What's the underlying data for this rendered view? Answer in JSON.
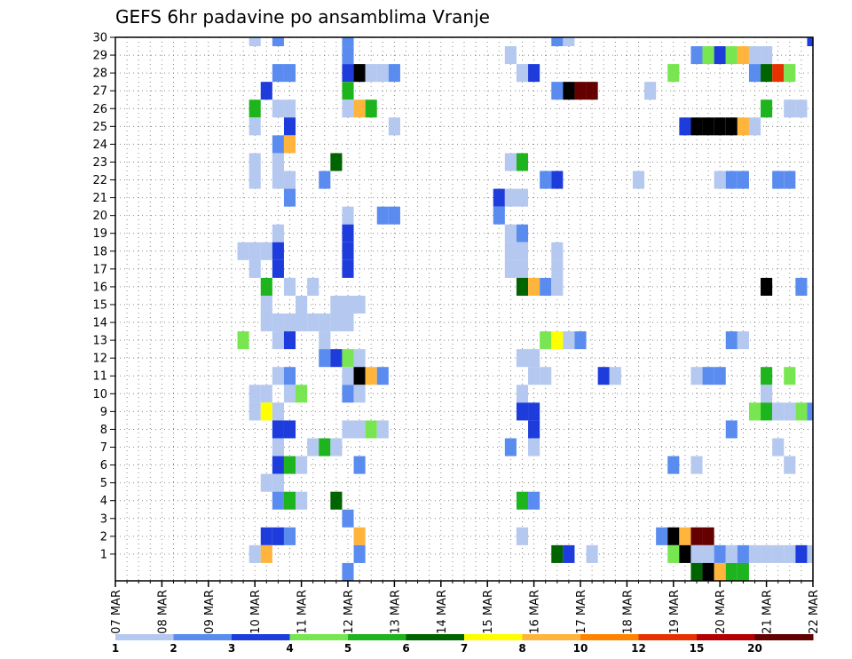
{
  "chart_data": {
    "type": "heatmap",
    "title": "GEFS 6hr padavine po ansamblima Vranje",
    "xlabel": "",
    "ylabel": "",
    "x_ticks": [
      "07 MAR",
      "08 MAR",
      "09 MAR",
      "10 MAR",
      "11 MAR",
      "12 MAR",
      "13 MAR",
      "14 MAR",
      "15 MAR",
      "16 MAR",
      "17 MAR",
      "18 MAR",
      "19 MAR",
      "20 MAR",
      "21 MAR",
      "22 MAR"
    ],
    "y_ticks": [
      "1",
      "2",
      "3",
      "4",
      "5",
      "6",
      "7",
      "8",
      "9",
      "10",
      "11",
      "12",
      "13",
      "14",
      "15",
      "16",
      "17",
      "18",
      "19",
      "20",
      "21",
      "22",
      "23",
      "24",
      "25",
      "26",
      "27",
      "28",
      "29",
      "30"
    ],
    "x_range_days": [
      7,
      22
    ],
    "y_range_members": [
      0,
      30
    ],
    "grid": "dotted",
    "colorbar": {
      "position": "bottom",
      "labels": [
        "1",
        "2",
        "3",
        "4",
        "5",
        "6",
        "7",
        "8",
        "10",
        "12",
        "15",
        "20"
      ],
      "colors": [
        "#b4c8f0",
        "#5a8cf0",
        "#1e3cdc",
        "#78e650",
        "#1eb41e",
        "#006400",
        "#ffff00",
        "#ffb43c",
        "#ff8200",
        "#e63200",
        "#b40000",
        "#640000"
      ]
    },
    "cells": [
      [
        30,
        10.0,
        1
      ],
      [
        30,
        10.5,
        2
      ],
      [
        30,
        12.0,
        2
      ],
      [
        30,
        16.5,
        2
      ],
      [
        30,
        16.75,
        1
      ],
      [
        30,
        22.0,
        3
      ],
      [
        29,
        12.0,
        2
      ],
      [
        29,
        15.5,
        1
      ],
      [
        29,
        19.5,
        2
      ],
      [
        29,
        19.75,
        4
      ],
      [
        29,
        20.0,
        3
      ],
      [
        29,
        20.25,
        4
      ],
      [
        29,
        20.5,
        8
      ],
      [
        29,
        20.75,
        1
      ],
      [
        29,
        21.0,
        1
      ],
      [
        28,
        10.5,
        2
      ],
      [
        28,
        10.75,
        2
      ],
      [
        28,
        12.0,
        3
      ],
      [
        28,
        12.25,
        15
      ],
      [
        28,
        12.5,
        1
      ],
      [
        28,
        12.75,
        1
      ],
      [
        28,
        13.0,
        2
      ],
      [
        28,
        15.75,
        1
      ],
      [
        28,
        16.0,
        3
      ],
      [
        28,
        19.0,
        4
      ],
      [
        28,
        20.75,
        2
      ],
      [
        28,
        21.0,
        6
      ],
      [
        28,
        21.25,
        10
      ],
      [
        28,
        21.5,
        4
      ],
      [
        27,
        10.25,
        3
      ],
      [
        27,
        12.0,
        5
      ],
      [
        27,
        16.5,
        2
      ],
      [
        27,
        16.75,
        20
      ],
      [
        27,
        17.0,
        12
      ],
      [
        27,
        17.25,
        12
      ],
      [
        27,
        18.5,
        1
      ],
      [
        26,
        10.0,
        5
      ],
      [
        26,
        10.5,
        1
      ],
      [
        26,
        10.75,
        1
      ],
      [
        26,
        12.0,
        1
      ],
      [
        26,
        12.25,
        8
      ],
      [
        26,
        12.5,
        5
      ],
      [
        26,
        21.0,
        5
      ],
      [
        26,
        21.5,
        1
      ],
      [
        26,
        21.75,
        1
      ],
      [
        25,
        10.0,
        1
      ],
      [
        25,
        10.75,
        3
      ],
      [
        25,
        13.0,
        1
      ],
      [
        25,
        19.25,
        3
      ],
      [
        25,
        19.5,
        15
      ],
      [
        25,
        19.75,
        15
      ],
      [
        25,
        20.0,
        15
      ],
      [
        25,
        20.25,
        20
      ],
      [
        25,
        20.5,
        8
      ],
      [
        25,
        20.75,
        1
      ],
      [
        24,
        10.5,
        2
      ],
      [
        24,
        10.75,
        8
      ],
      [
        23,
        10.0,
        1
      ],
      [
        23,
        10.5,
        1
      ],
      [
        23,
        11.75,
        6
      ],
      [
        23,
        15.5,
        1
      ],
      [
        23,
        15.75,
        5
      ],
      [
        22,
        10.0,
        1
      ],
      [
        22,
        10.5,
        1
      ],
      [
        22,
        10.75,
        1
      ],
      [
        22,
        11.5,
        2
      ],
      [
        22,
        16.25,
        2
      ],
      [
        22,
        16.5,
        3
      ],
      [
        22,
        18.25,
        1
      ],
      [
        22,
        20.0,
        1
      ],
      [
        22,
        20.25,
        2
      ],
      [
        22,
        20.5,
        2
      ],
      [
        22,
        21.25,
        2
      ],
      [
        22,
        21.5,
        2
      ],
      [
        21,
        10.75,
        2
      ],
      [
        21,
        15.25,
        3
      ],
      [
        21,
        15.5,
        1
      ],
      [
        21,
        15.75,
        1
      ],
      [
        20,
        12.0,
        1
      ],
      [
        20,
        12.75,
        2
      ],
      [
        20,
        13.0,
        2
      ],
      [
        20,
        15.25,
        2
      ],
      [
        19,
        10.5,
        1
      ],
      [
        19,
        12.0,
        3
      ],
      [
        19,
        15.5,
        1
      ],
      [
        19,
        15.75,
        2
      ],
      [
        18,
        9.75,
        1
      ],
      [
        18,
        10.0,
        1
      ],
      [
        18,
        10.25,
        1
      ],
      [
        18,
        10.5,
        3
      ],
      [
        18,
        12.0,
        3
      ],
      [
        18,
        15.5,
        1
      ],
      [
        18,
        15.75,
        1
      ],
      [
        18,
        16.5,
        1
      ],
      [
        17,
        10.0,
        1
      ],
      [
        17,
        10.5,
        3
      ],
      [
        17,
        12.0,
        3
      ],
      [
        17,
        15.5,
        1
      ],
      [
        17,
        15.75,
        1
      ],
      [
        17,
        16.5,
        1
      ],
      [
        16,
        10.25,
        5
      ],
      [
        16,
        10.75,
        1
      ],
      [
        16,
        11.25,
        1
      ],
      [
        16,
        15.75,
        6
      ],
      [
        16,
        16.0,
        8
      ],
      [
        16,
        16.25,
        2
      ],
      [
        16,
        16.5,
        1
      ],
      [
        16,
        21.0,
        20
      ],
      [
        16,
        21.75,
        2
      ],
      [
        15,
        10.25,
        1
      ],
      [
        15,
        11.0,
        1
      ],
      [
        15,
        11.75,
        1
      ],
      [
        15,
        12.0,
        1
      ],
      [
        15,
        12.25,
        1
      ],
      [
        14,
        10.25,
        1
      ],
      [
        14,
        10.5,
        1
      ],
      [
        14,
        10.75,
        1
      ],
      [
        14,
        11.0,
        1
      ],
      [
        14,
        11.25,
        1
      ],
      [
        14,
        11.5,
        1
      ],
      [
        14,
        11.75,
        1
      ],
      [
        14,
        12.0,
        1
      ],
      [
        13,
        9.75,
        4
      ],
      [
        13,
        10.5,
        1
      ],
      [
        13,
        10.75,
        3
      ],
      [
        13,
        11.5,
        1
      ],
      [
        13,
        16.25,
        4
      ],
      [
        13,
        16.5,
        7
      ],
      [
        13,
        16.75,
        1
      ],
      [
        13,
        17.0,
        2
      ],
      [
        13,
        20.25,
        2
      ],
      [
        13,
        20.5,
        1
      ],
      [
        12,
        11.5,
        2
      ],
      [
        12,
        11.75,
        3
      ],
      [
        12,
        12.0,
        4
      ],
      [
        12,
        12.25,
        1
      ],
      [
        12,
        15.75,
        1
      ],
      [
        12,
        16.0,
        1
      ],
      [
        11,
        10.5,
        1
      ],
      [
        11,
        10.75,
        2
      ],
      [
        11,
        12.0,
        1
      ],
      [
        11,
        12.25,
        15
      ],
      [
        11,
        12.5,
        8
      ],
      [
        11,
        12.75,
        2
      ],
      [
        11,
        16.0,
        1
      ],
      [
        11,
        16.25,
        1
      ],
      [
        11,
        17.5,
        3
      ],
      [
        11,
        17.75,
        1
      ],
      [
        11,
        19.5,
        1
      ],
      [
        11,
        19.75,
        2
      ],
      [
        11,
        20.0,
        2
      ],
      [
        11,
        21.0,
        5
      ],
      [
        11,
        21.5,
        4
      ],
      [
        10,
        10.0,
        1
      ],
      [
        10,
        10.25,
        1
      ],
      [
        10,
        10.75,
        1
      ],
      [
        10,
        11.0,
        4
      ],
      [
        10,
        12.0,
        2
      ],
      [
        10,
        12.25,
        1
      ],
      [
        10,
        15.75,
        1
      ],
      [
        10,
        21.0,
        1
      ],
      [
        9,
        10.0,
        1
      ],
      [
        9,
        10.25,
        7
      ],
      [
        9,
        10.5,
        1
      ],
      [
        9,
        15.75,
        3
      ],
      [
        9,
        16.0,
        3
      ],
      [
        9,
        20.75,
        4
      ],
      [
        9,
        21.0,
        5
      ],
      [
        9,
        21.25,
        1
      ],
      [
        9,
        21.5,
        1
      ],
      [
        9,
        21.75,
        4
      ],
      [
        9,
        22.0,
        2
      ],
      [
        8,
        10.5,
        3
      ],
      [
        8,
        10.75,
        3
      ],
      [
        8,
        12.0,
        1
      ],
      [
        8,
        12.25,
        1
      ],
      [
        8,
        12.5,
        4
      ],
      [
        8,
        12.75,
        1
      ],
      [
        8,
        16.0,
        3
      ],
      [
        8,
        20.25,
        2
      ],
      [
        7,
        10.5,
        1
      ],
      [
        7,
        11.25,
        1
      ],
      [
        7,
        11.5,
        5
      ],
      [
        7,
        11.75,
        1
      ],
      [
        7,
        15.5,
        2
      ],
      [
        7,
        16.0,
        1
      ],
      [
        7,
        21.25,
        1
      ],
      [
        6,
        10.5,
        3
      ],
      [
        6,
        10.75,
        5
      ],
      [
        6,
        11.0,
        1
      ],
      [
        6,
        12.25,
        2
      ],
      [
        6,
        19.0,
        2
      ],
      [
        6,
        19.5,
        1
      ],
      [
        6,
        21.5,
        1
      ],
      [
        5,
        10.25,
        1
      ],
      [
        5,
        10.5,
        1
      ],
      [
        4,
        10.5,
        2
      ],
      [
        4,
        10.75,
        5
      ],
      [
        4,
        11.0,
        1
      ],
      [
        4,
        11.75,
        6
      ],
      [
        4,
        15.75,
        5
      ],
      [
        4,
        16.0,
        2
      ],
      [
        3,
        12.0,
        2
      ],
      [
        2,
        10.25,
        3
      ],
      [
        2,
        10.5,
        3
      ],
      [
        2,
        10.75,
        2
      ],
      [
        2,
        12.25,
        8
      ],
      [
        2,
        15.75,
        1
      ],
      [
        2,
        18.75,
        2
      ],
      [
        2,
        19.0,
        15
      ],
      [
        2,
        19.25,
        8
      ],
      [
        2,
        19.5,
        12
      ],
      [
        2,
        19.75,
        12
      ],
      [
        1,
        10.0,
        1
      ],
      [
        1,
        10.25,
        8
      ],
      [
        1,
        12.25,
        2
      ],
      [
        1,
        16.5,
        6
      ],
      [
        1,
        16.75,
        3
      ],
      [
        1,
        17.25,
        1
      ],
      [
        1,
        19.0,
        4
      ],
      [
        1,
        19.25,
        15
      ],
      [
        1,
        19.5,
        1
      ],
      [
        1,
        19.75,
        1
      ],
      [
        1,
        20.0,
        2
      ],
      [
        1,
        20.25,
        1
      ],
      [
        1,
        20.5,
        2
      ],
      [
        1,
        20.75,
        1
      ],
      [
        1,
        21.0,
        1
      ],
      [
        1,
        21.25,
        1
      ],
      [
        1,
        21.5,
        1
      ],
      [
        1,
        21.75,
        3
      ],
      [
        1,
        22.0,
        1
      ],
      [
        0,
        12.0,
        2
      ],
      [
        0,
        19.5,
        6
      ],
      [
        0,
        19.75,
        15
      ],
      [
        0,
        20.0,
        8
      ],
      [
        0,
        20.25,
        5
      ],
      [
        0,
        20.5,
        5
      ]
    ]
  }
}
